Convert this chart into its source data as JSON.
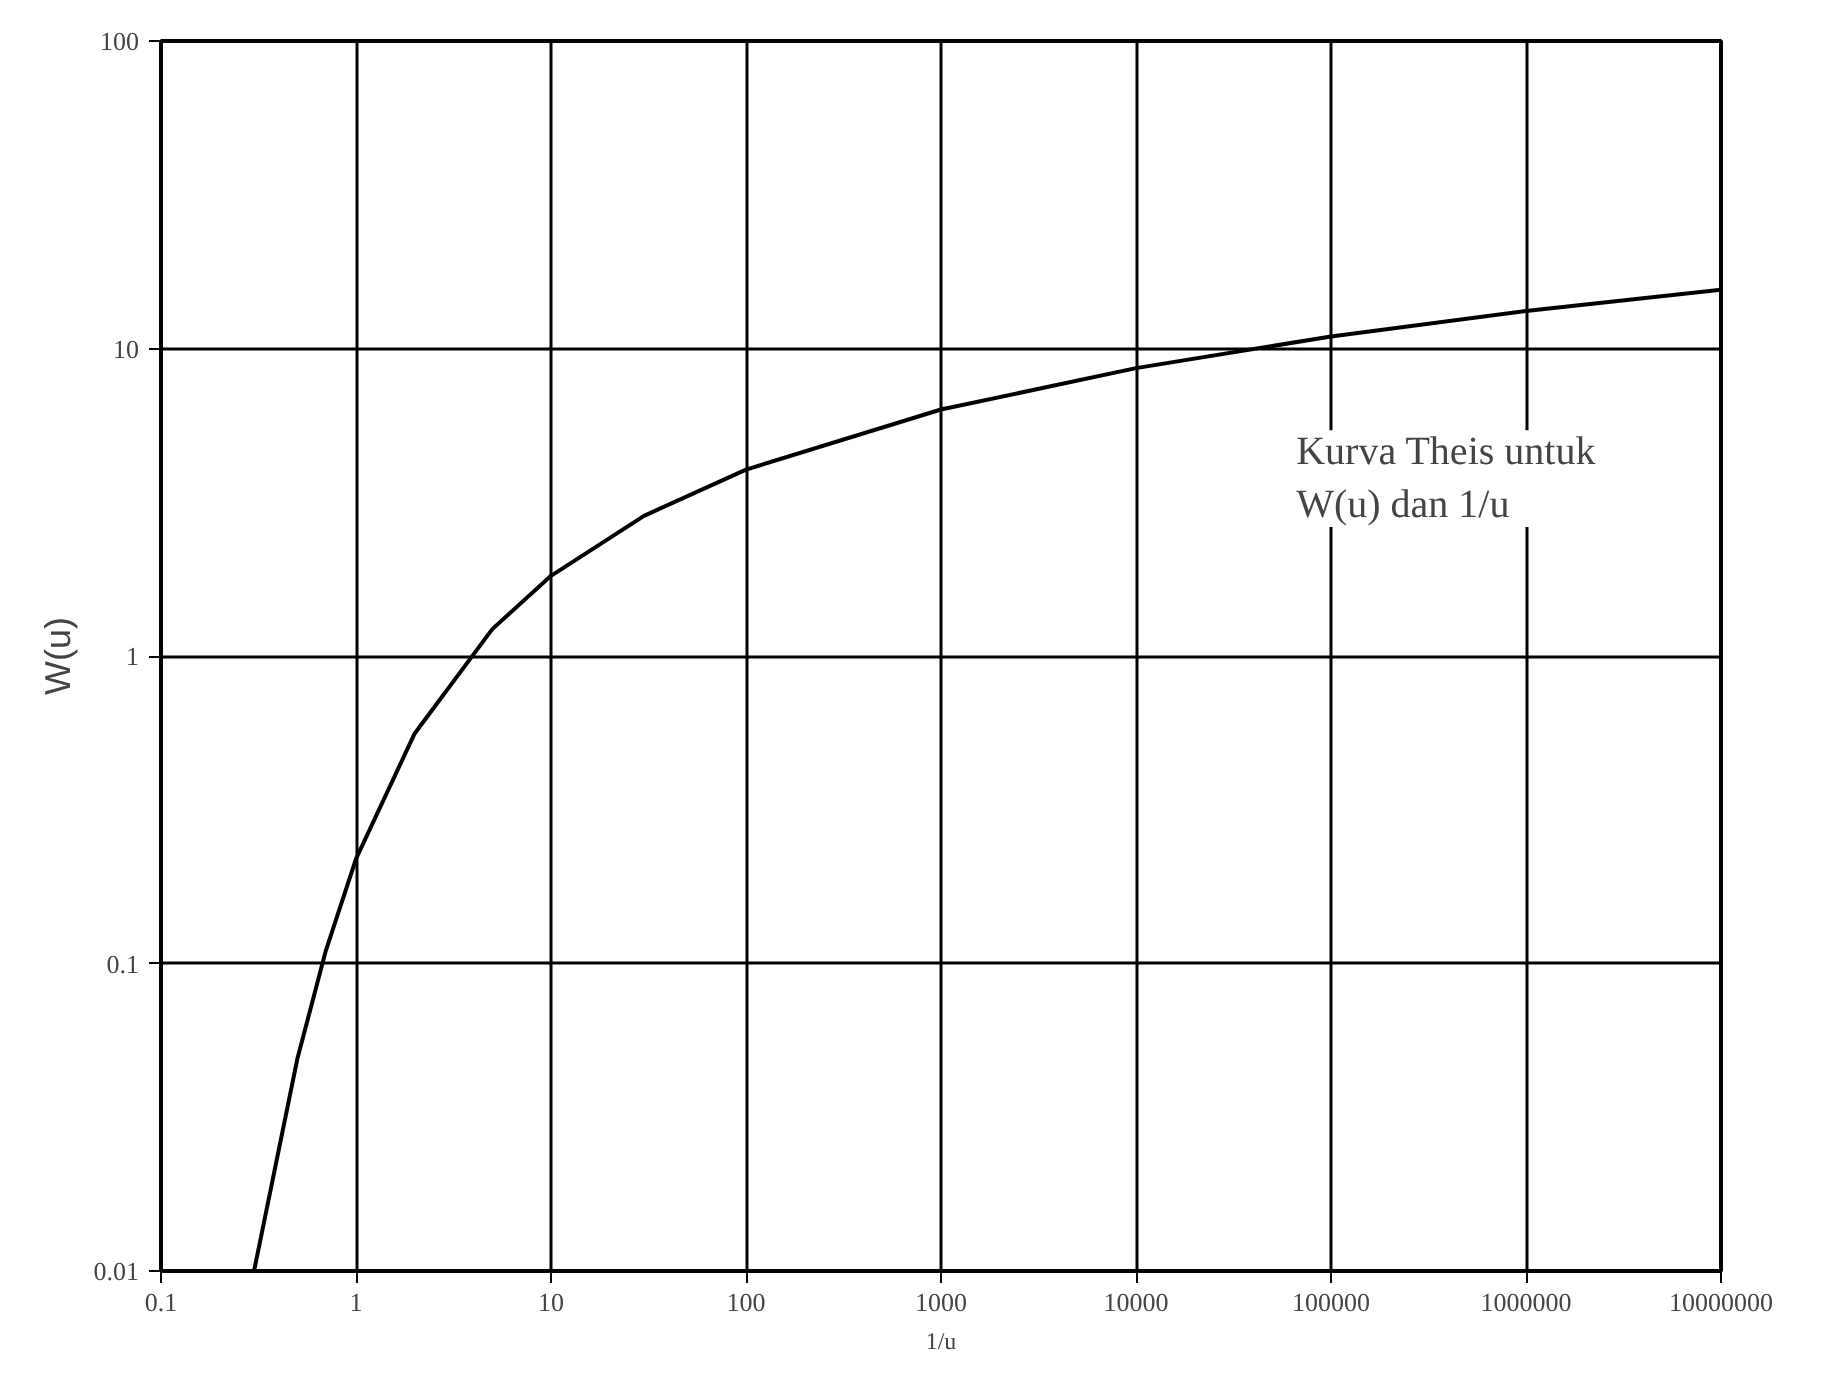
{
  "chart_data": {
    "type": "line",
    "xlabel": "1/u",
    "ylabel": "W(u)",
    "x": [
      0.3,
      0.5,
      0.7,
      1,
      2,
      5,
      10,
      30,
      100,
      1000,
      10000,
      100000,
      1000000,
      10000000
    ],
    "series": [
      {
        "color": "#000000",
        "values": [
          0.01,
          0.0489,
          0.11,
          0.219,
          0.56,
          1.223,
          1.823,
          2.857,
          4.038,
          6.332,
          8.633,
          10.94,
          13.24,
          15.54
        ]
      }
    ],
    "xlim": [
      0.1,
      10000000
    ],
    "ylim": [
      0.01,
      100
    ],
    "xticks": [
      0.1,
      1,
      10,
      100,
      1000,
      10000,
      100000,
      1000000,
      10000000
    ],
    "yticks": [
      0.01,
      0.1,
      1,
      10,
      100
    ],
    "log": "xy",
    "grid": true,
    "marker": "none",
    "line_style": "solid",
    "annotations": [
      "Kurva Theis untuk\nW(u) dan 1/u"
    ]
  }
}
